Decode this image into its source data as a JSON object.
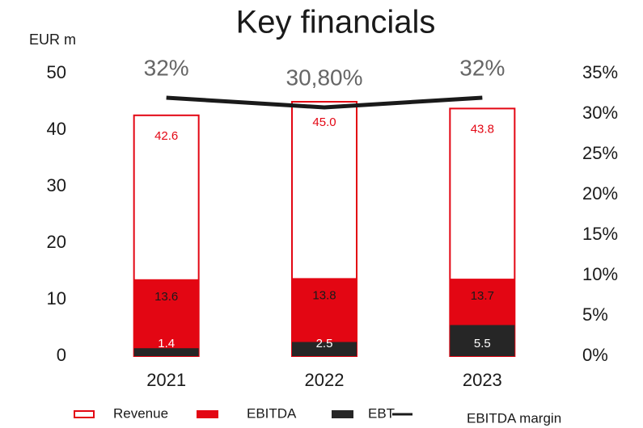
{
  "chart_data": {
    "type": "bar",
    "title": "Key financials",
    "y_label": "EUR m",
    "categories": [
      "2021",
      "2022",
      "2023"
    ],
    "series": [
      {
        "name": "Revenue",
        "color": "#e30613",
        "fill": "#ffffff",
        "values": [
          42.6,
          45.0,
          43.8
        ],
        "value_labels": [
          "42.6",
          "45.0",
          "43.8"
        ]
      },
      {
        "name": "EBITDA",
        "color": "#e30613",
        "values": [
          13.6,
          13.8,
          13.7
        ],
        "value_labels": [
          "13.6",
          "13.8",
          "13.7"
        ]
      },
      {
        "name": "EBT",
        "color": "#262626",
        "values": [
          1.4,
          2.5,
          5.5
        ],
        "value_labels": [
          "1.4",
          "2.5",
          "5.5"
        ]
      },
      {
        "name": "EBITDA margin",
        "type": "line",
        "axis": "y2",
        "color": "#1a1a1a",
        "values": [
          32,
          30.8,
          32
        ],
        "value_labels": [
          "32%",
          "30,80%",
          "32%"
        ]
      }
    ],
    "ylim": [
      0,
      50
    ],
    "yticks": [
      0,
      10,
      20,
      30,
      40,
      50
    ],
    "y2lim": [
      0,
      35
    ],
    "y2ticks": [
      {
        "value": 0,
        "label": "0%"
      },
      {
        "value": 5,
        "label": "5%"
      },
      {
        "value": 10,
        "label": "10%"
      },
      {
        "value": 15,
        "label": "15%"
      },
      {
        "value": 20,
        "label": "20%"
      },
      {
        "value": 25,
        "label": "25%"
      },
      {
        "value": 30,
        "label": "30%"
      },
      {
        "value": 35,
        "label": "35%"
      }
    ],
    "grid": false,
    "legend": "bottom"
  }
}
